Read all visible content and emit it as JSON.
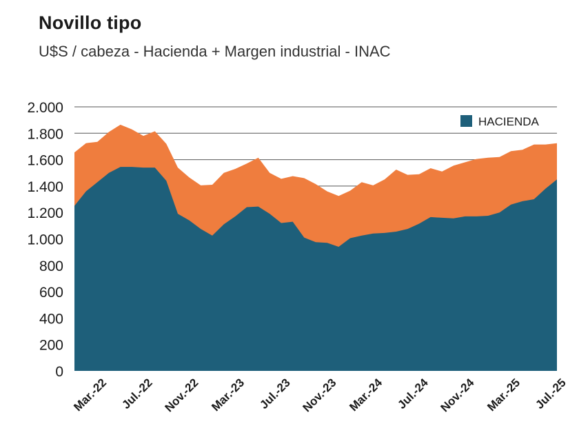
{
  "title": "Novillo tipo",
  "subtitle": "U$S / cabeza - Hacienda + Margen industrial - INAC",
  "colors": {
    "hacienda": "#1e5f7a",
    "margen": "#ef7d3e",
    "grid": "#555555"
  },
  "chart_data": {
    "type": "area",
    "stacked": true,
    "title": "Novillo tipo",
    "subtitle": "U$S / cabeza - Hacienda + Margen industrial - INAC",
    "ylim": [
      0,
      2000
    ],
    "yticks": [
      0,
      200,
      400,
      600,
      800,
      1000,
      1200,
      1400,
      1600,
      1800,
      2000
    ],
    "ytick_labels": [
      "0",
      "200",
      "400",
      "600",
      "800",
      "1.000",
      "1.200",
      "1.400",
      "1.600",
      "1.800",
      "2.000"
    ],
    "xtick_labels": [
      {
        "label": "Mar.-22",
        "index": 2
      },
      {
        "label": "Jul.-22",
        "index": 6
      },
      {
        "label": "Nov.-22",
        "index": 10
      },
      {
        "label": "Mar.-23",
        "index": 14
      },
      {
        "label": "Jul.-23",
        "index": 18
      },
      {
        "label": "Nov.-23",
        "index": 22
      },
      {
        "label": "Mar.-24",
        "index": 26
      },
      {
        "label": "Jul.-24",
        "index": 30
      },
      {
        "label": "Nov.-24",
        "index": 34
      },
      {
        "label": "Mar.-25",
        "index": 38
      },
      {
        "label": "Jul.-25",
        "index": 42
      }
    ],
    "legend": {
      "entries": [
        "HACIENDA"
      ],
      "position": "top-right"
    },
    "series": [
      {
        "name": "Hacienda",
        "values": [
          1250,
          1360,
          1430,
          1500,
          1545,
          1545,
          1540,
          1540,
          1440,
          1190,
          1140,
          1075,
          1025,
          1110,
          1170,
          1240,
          1245,
          1190,
          1120,
          1130,
          1010,
          975,
          970,
          940,
          1005,
          1025,
          1040,
          1045,
          1055,
          1075,
          1115,
          1165,
          1160,
          1155,
          1170,
          1170,
          1175,
          1200,
          1260,
          1285,
          1300,
          1380,
          1450
        ]
      },
      {
        "name": "Margen industrial",
        "values": [
          405,
          365,
          305,
          310,
          320,
          285,
          240,
          275,
          280,
          350,
          325,
          330,
          385,
          390,
          360,
          330,
          370,
          310,
          335,
          345,
          450,
          440,
          390,
          385,
          360,
          405,
          365,
          405,
          470,
          410,
          375,
          370,
          350,
          400,
          410,
          435,
          440,
          420,
          405,
          390,
          415,
          335,
          275
        ]
      }
    ]
  }
}
